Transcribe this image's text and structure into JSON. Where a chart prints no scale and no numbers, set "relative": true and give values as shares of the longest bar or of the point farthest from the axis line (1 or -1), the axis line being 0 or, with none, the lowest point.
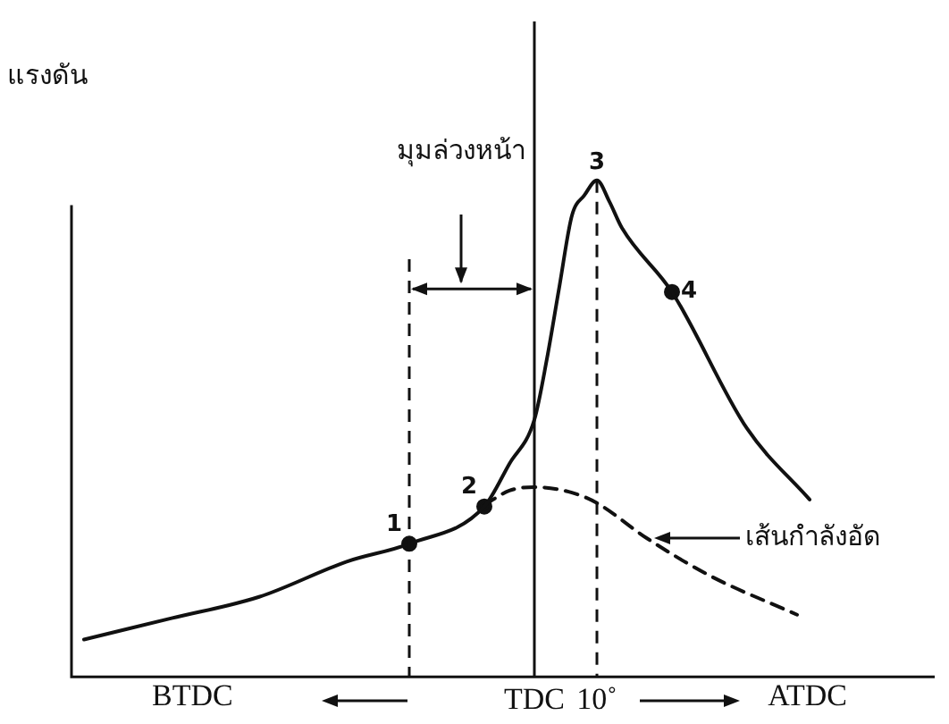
{
  "chart_data": {
    "type": "line",
    "relative": true,
    "ylabel": "แรงดัน",
    "line_style": "solid",
    "marker": "none",
    "categories": [
      null,
      null,
      null,
      null,
      null,
      null,
      null,
      null,
      null,
      null,
      null,
      null,
      null,
      null,
      null,
      null,
      null,
      null,
      null,
      null,
      null,
      null,
      null,
      null,
      null,
      null,
      null,
      null,
      null,
      null,
      null,
      null,
      null,
      null,
      null,
      null,
      null,
      "TDC",
      null,
      null,
      null,
      null,
      "10˚",
      null,
      null,
      null,
      null,
      null,
      null,
      null,
      null,
      null,
      null,
      null,
      null,
      null,
      null,
      null,
      null,
      null,
      null,
      null,
      null,
      null,
      null,
      null,
      null,
      null,
      null,
      null
    ],
    "series": [
      {
        "color": "#111111",
        "values": [
          null,
          0.075,
          null,
          null,
          null,
          null,
          null,
          null,
          0.118,
          null,
          null,
          null,
          null,
          null,
          null,
          0.161,
          null,
          null,
          null,
          null,
          null,
          null,
          0.232,
          null,
          null,
          null,
          null,
          0.268,
          null,
          null,
          null,
          null,
          null,
          0.343,
          null,
          0.429,
          null,
          0.518,
          0.64,
          0.786,
          0.929,
          0.97,
          1,
          0.957,
          0.904,
          null,
          null,
          null,
          0.775,
          null,
          null,
          null,
          null,
          null,
          0.5,
          null,
          null,
          null,
          null,
          0.357,
          null,
          null,
          null,
          null,
          null,
          null,
          null,
          null,
          null,
          null
        ],
        "name": null
      },
      {
        "name": "เส้นกำลังอัด",
        "color": "#111111",
        "line_style": "dashed",
        "values": [
          null,
          null,
          null,
          null,
          null,
          null,
          null,
          null,
          null,
          null,
          null,
          null,
          null,
          null,
          null,
          null,
          null,
          null,
          null,
          null,
          null,
          null,
          null,
          null,
          null,
          null,
          null,
          null,
          null,
          null,
          null,
          null,
          null,
          0.346,
          null,
          0.375,
          null,
          0.382,
          null,
          null,
          0.371,
          null,
          0.35,
          null,
          null,
          null,
          0.279,
          null,
          null,
          null,
          null,
          0.204,
          null,
          null,
          null,
          null,
          null,
          null,
          0.125,
          null,
          null,
          null,
          null,
          null,
          null,
          null,
          null,
          null,
          null,
          null
        ]
      },
      {
        "type": "scatter",
        "color": "#111111",
        "marker": "circle",
        "values": [
          null,
          null,
          null,
          null,
          null,
          null,
          null,
          null,
          null,
          null,
          null,
          null,
          null,
          null,
          null,
          null,
          null,
          null,
          null,
          null,
          null,
          null,
          null,
          null,
          null,
          null,
          null,
          0.268,
          null,
          null,
          null,
          null,
          null,
          0.343,
          null,
          null,
          null,
          null,
          null,
          null,
          null,
          null,
          null,
          null,
          null,
          null,
          null,
          null,
          0.775,
          null,
          null,
          null,
          null,
          null,
          null,
          null,
          null,
          null,
          null,
          null,
          null,
          null,
          null,
          null,
          null,
          null,
          null,
          null,
          null,
          null
        ]
      }
    ],
    "ref_lines": [
      {
        "axis": "x",
        "value": "TDC",
        "line_style": "solid"
      },
      {
        "axis": "x",
        "value": "10˚",
        "line_style": "dashed"
      }
    ],
    "annotations": [
      "มุมล่วงหน้า",
      "BTDC",
      "ATDC",
      "1",
      "2",
      "3",
      "4"
    ]
  }
}
